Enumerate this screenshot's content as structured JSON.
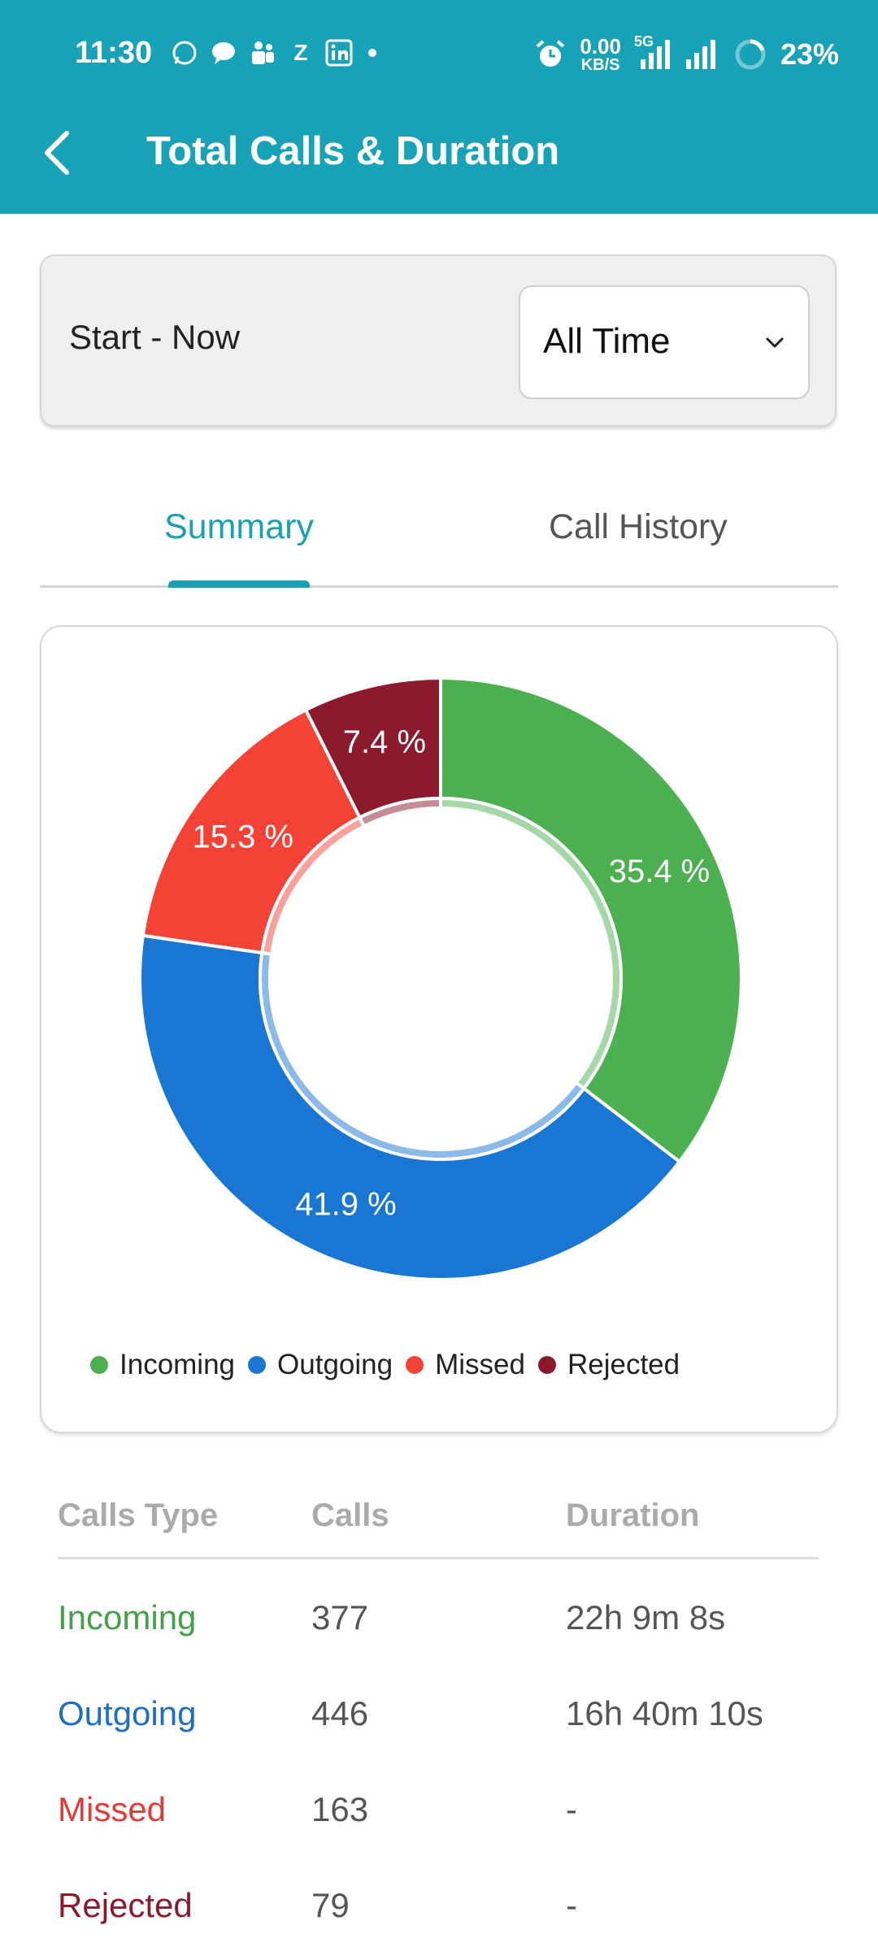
{
  "status_bar": {
    "time": "11:30",
    "notif_z": "Z",
    "net_speed_value": "0.00",
    "net_speed_unit": "KB/S",
    "network": "5G",
    "battery": "23%"
  },
  "header": {
    "title": "Total Calls & Duration"
  },
  "range": {
    "label": "Start - Now",
    "selected": "All Time"
  },
  "tabs": [
    {
      "label": "Summary"
    },
    {
      "label": "Call History"
    }
  ],
  "chart_data": {
    "type": "pie",
    "variant": "donut",
    "series": [
      {
        "name": "Incoming",
        "percent": 35.4,
        "label": "35.4 %",
        "color": "#4caf50"
      },
      {
        "name": "Outgoing",
        "percent": 41.9,
        "label": "41.9 %",
        "color": "#1976d2"
      },
      {
        "name": "Missed",
        "percent": 15.3,
        "label": "15.3 %",
        "color": "#f44336"
      },
      {
        "name": "Rejected",
        "percent": 7.4,
        "label": "7.4 %",
        "color": "#8b1a2c"
      }
    ],
    "legend_position": "bottom"
  },
  "table": {
    "headers": [
      "Calls Type",
      "Calls",
      "Duration"
    ],
    "rows": [
      {
        "type": "Incoming",
        "calls": "377",
        "duration": "22h 9m 8s",
        "color": "#43a047"
      },
      {
        "type": "Outgoing",
        "calls": "446",
        "duration": "16h 40m 10s",
        "color": "#1e6fbf"
      },
      {
        "type": "Missed",
        "calls": "163",
        "duration": "-",
        "color": "#e53935"
      },
      {
        "type": "Rejected",
        "calls": "79",
        "duration": "-",
        "color": "#8b1a2c"
      }
    ]
  }
}
